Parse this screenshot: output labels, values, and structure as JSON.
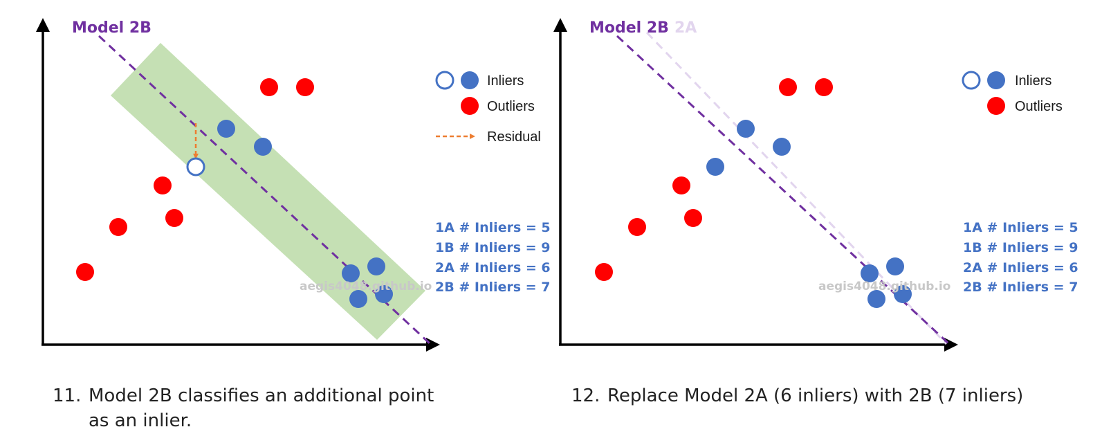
{
  "colors": {
    "inlier": "#4472c4",
    "outlier": "#ff0000",
    "model_active": "#7030a0",
    "model_faded": "#e2d5ee",
    "band": "#c5e0b4",
    "residual": "#ed7d31",
    "axis": "#000000"
  },
  "panels": [
    {
      "model_label": "Model 2B",
      "legend": {
        "inliers": "Inliers",
        "outliers": "Outliers",
        "residual": "Residual"
      },
      "counts": [
        "1A # Inliers = 5",
        "1B # Inliers = 9",
        "2A # Inliers = 6",
        "2B # Inliers = 7"
      ],
      "watermark": "aegis4048.github.io",
      "caption_number": "11.",
      "caption_lines": [
        "Model 2B classifies an additional point",
        "as an inlier."
      ]
    },
    {
      "model_label": "Model 2B",
      "model_label_faded": "2A",
      "legend": {
        "inliers": "Inliers",
        "outliers": "Outliers"
      },
      "counts": [
        "1A # Inliers = 5",
        "1B # Inliers = 9",
        "2A # Inliers = 6",
        "2B # Inliers = 7"
      ],
      "watermark": "aegis4048.github.io",
      "caption_number": "12.",
      "caption_lines": [
        "Replace Model 2A (6 inliers) with 2B (7 inliers)"
      ]
    }
  ]
}
